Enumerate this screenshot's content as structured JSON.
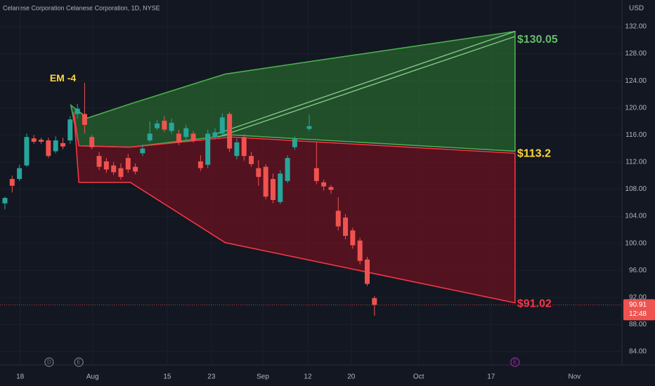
{
  "chart_data": {
    "type": "candlestick",
    "title": "Celanese Corporation Celanese Corporation, 1D, NYSE",
    "currency": "USD",
    "xlim": [
      -0.68,
      85.16
    ],
    "ylim": [
      82.03,
      135.94
    ],
    "yticks": [
      {
        "value": 84,
        "label": "84.00"
      },
      {
        "value": 88,
        "label": "88.00"
      },
      {
        "value": 92,
        "label": "92.00"
      },
      {
        "value": 96,
        "label": "96.00"
      },
      {
        "value": 100,
        "label": "100.00"
      },
      {
        "value": 104,
        "label": "104.00"
      },
      {
        "value": 108,
        "label": "108.00"
      },
      {
        "value": 112,
        "label": "112.00"
      },
      {
        "value": 116,
        "label": "116.00"
      },
      {
        "value": 120,
        "label": "120.00"
      },
      {
        "value": 124,
        "label": "124.00"
      },
      {
        "value": 128,
        "label": "128.00"
      },
      {
        "value": 132,
        "label": "132.00"
      }
    ],
    "xticks": [
      {
        "value": 2.1,
        "label": "18"
      },
      {
        "value": 12.1,
        "label": "Aug"
      },
      {
        "value": 22.4,
        "label": "15"
      },
      {
        "value": 28.5,
        "label": "23"
      },
      {
        "value": 35.6,
        "label": "Sep"
      },
      {
        "value": 41.8,
        "label": "12"
      },
      {
        "value": 47.8,
        "label": "20"
      },
      {
        "value": 57.1,
        "label": "Oct"
      },
      {
        "value": 67.1,
        "label": "17"
      },
      {
        "value": 78.6,
        "label": "Nov"
      }
    ],
    "grid": true,
    "up_color": "#26a69a",
    "down_color": "#ef5350",
    "x": [
      0,
      1,
      2,
      3,
      4,
      5,
      6,
      7,
      8,
      9,
      10,
      11,
      12,
      13,
      14,
      15,
      16,
      17,
      18,
      19,
      20,
      21,
      22,
      23,
      24,
      25,
      26,
      27,
      28,
      29,
      30,
      31,
      32,
      33,
      34,
      35,
      36,
      37,
      38,
      39,
      40,
      42,
      43,
      44,
      45,
      46,
      47,
      48,
      49,
      50,
      51
    ],
    "open": [
      105.9,
      109.5,
      109.5,
      111.5,
      115.5,
      115.3,
      115.2,
      113.6,
      114.8,
      115.2,
      119.1,
      119.1,
      115.7,
      112.9,
      112.1,
      111.5,
      111.1,
      112.6,
      111.3,
      113.3,
      115.2,
      117.0,
      118.1,
      116.6,
      116.2,
      115.7,
      116.2,
      112.1,
      111.6,
      115.7,
      116.2,
      119.1,
      112.9,
      115.7,
      112.9,
      111.1,
      111.3,
      109.5,
      106.1,
      109.2,
      114.2,
      116.9,
      111.1,
      109.0,
      108.3,
      104.8,
      103.8,
      101.9,
      100.4,
      97.6,
      91.9
    ],
    "high": [
      106.9,
      110.0,
      111.6,
      116.2,
      116.0,
      115.6,
      115.6,
      115.8,
      115.6,
      118.8,
      120.6,
      123.7,
      116.0,
      113.5,
      112.6,
      112.0,
      111.8,
      113.2,
      111.8,
      114.6,
      118.0,
      118.2,
      118.8,
      118.4,
      116.8,
      117.5,
      116.6,
      113.0,
      116.8,
      117.0,
      119.2,
      119.4,
      115.5,
      116.1,
      113.5,
      112.3,
      111.7,
      110.3,
      110.8,
      113.0,
      115.8,
      119.0,
      115.0,
      109.4,
      108.6,
      106.8,
      104.3,
      102.3,
      100.8,
      98.0,
      92.2
    ],
    "low": [
      105.0,
      107.5,
      109.2,
      111.3,
      114.7,
      114.7,
      112.6,
      113.3,
      113.9,
      114.7,
      118.4,
      116.2,
      113.9,
      110.8,
      110.4,
      110.1,
      109.4,
      110.4,
      110.2,
      112.9,
      114.9,
      116.7,
      116.4,
      116.2,
      114.5,
      115.3,
      114.9,
      110.7,
      111.1,
      115.4,
      115.9,
      113.5,
      112.4,
      112.2,
      111.3,
      108.5,
      106.5,
      105.9,
      105.8,
      108.9,
      113.8,
      116.6,
      108.7,
      107.8,
      107.3,
      101.9,
      100.6,
      99.2,
      96.9,
      93.7,
      89.3
    ],
    "close": [
      106.7,
      108.5,
      111.1,
      115.7,
      115.0,
      115.0,
      112.9,
      115.2,
      114.3,
      118.3,
      119.9,
      117.5,
      114.2,
      111.3,
      110.9,
      110.5,
      109.8,
      110.9,
      110.6,
      114.0,
      116.2,
      117.7,
      116.8,
      117.8,
      114.9,
      117.0,
      115.2,
      111.1,
      116.2,
      116.4,
      118.6,
      114.0,
      114.9,
      112.9,
      111.7,
      109.8,
      106.9,
      106.4,
      110.3,
      112.6,
      115.4,
      117.3,
      109.2,
      108.4,
      107.9,
      102.5,
      101.1,
      99.7,
      97.4,
      94.0,
      90.91
    ],
    "last_price": 90.91,
    "countdown": "12:48",
    "cones": [
      {
        "color": "#4caf50",
        "fill": "rgba(46,125,50,0.55)",
        "points": [
          [
            9.1,
            120.4
          ],
          [
            11.4,
            118.5
          ],
          [
            17.3,
            120.6
          ],
          [
            30.4,
            125.0
          ],
          [
            70.4,
            131.3
          ],
          [
            70.4,
            113.6
          ],
          [
            31.3,
            116.0
          ],
          [
            17.3,
            114.2
          ],
          [
            10.2,
            114.4
          ]
        ]
      },
      {
        "color": "#f23645",
        "fill": "rgba(136,14,30,0.55)",
        "points": [
          [
            9.5,
            119.4
          ],
          [
            10.2,
            114.4
          ],
          [
            17.3,
            114.2
          ],
          [
            31.3,
            115.7
          ],
          [
            70.4,
            113.3
          ],
          [
            70.4,
            91.2
          ],
          [
            30.4,
            100.1
          ],
          [
            17.3,
            109.0
          ],
          [
            10.2,
            109.0
          ]
        ]
      }
    ],
    "lines": [
      {
        "color": "#81c784",
        "points": [
          [
            29.4,
            116.24
          ],
          [
            70.4,
            131.3
          ]
        ]
      },
      {
        "color": "#81c784",
        "points": [
          [
            29.4,
            115.7
          ],
          [
            70.4,
            130.55
          ]
        ]
      }
    ],
    "targets": [
      {
        "value": 130.05,
        "label": "$130.05",
        "color": "#66bb6a"
      },
      {
        "value": 113.2,
        "label": "$113.2",
        "color": "#fdd835"
      },
      {
        "value": 91.02,
        "label": "$91.02",
        "color": "#f23645"
      }
    ],
    "annotation": {
      "text": "EM -4",
      "x": 8.0,
      "y": 124.3,
      "color": "#fdd835"
    },
    "events": [
      {
        "x": 6.1,
        "label": "D",
        "color": "#787b86"
      },
      {
        "x": 10.2,
        "label": "E",
        "color": "#787b86"
      },
      {
        "x": 70.4,
        "label": "E",
        "color": "#9c27b0"
      }
    ]
  }
}
